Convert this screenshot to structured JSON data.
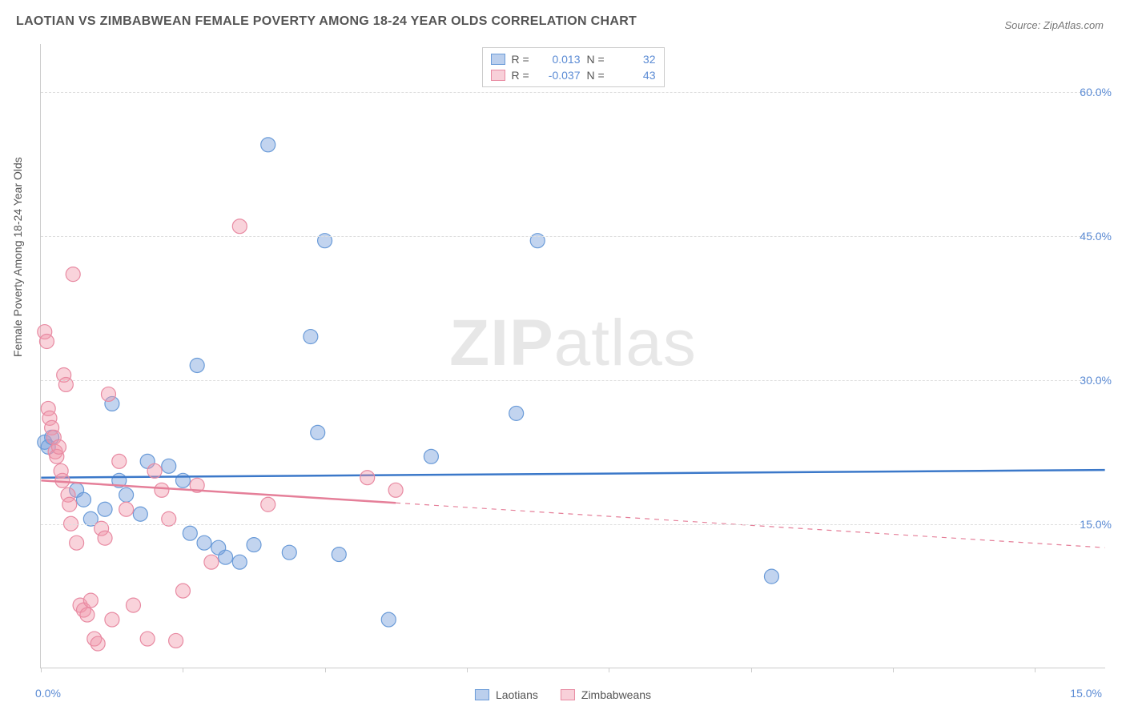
{
  "title": "LAOTIAN VS ZIMBABWEAN FEMALE POVERTY AMONG 18-24 YEAR OLDS CORRELATION CHART",
  "source": "Source: ZipAtlas.com",
  "y_axis_label": "Female Poverty Among 18-24 Year Olds",
  "watermark": "ZIPatlas",
  "chart": {
    "type": "scatter",
    "background_color": "#ffffff",
    "grid_color": "#dddddd",
    "axis_color": "#cccccc",
    "title_fontsize": 16,
    "label_fontsize": 14,
    "tick_label_color": "#5b8bd4",
    "text_color": "#555555",
    "xlim": [
      0,
      15
    ],
    "ylim": [
      0,
      65
    ],
    "y_ticks": [
      15,
      30,
      45,
      60
    ],
    "y_tick_labels": [
      "15.0%",
      "30.0%",
      "45.0%",
      "60.0%"
    ],
    "x_tick_positions": [
      0,
      2,
      4,
      6,
      8,
      10,
      12,
      14
    ],
    "x_tick_labels_shown": {
      "left": "0.0%",
      "right": "15.0%"
    },
    "marker_radius": 9,
    "marker_stroke_width": 1.2,
    "series": [
      {
        "name": "Laotians",
        "fill": "rgba(120,160,220,0.45)",
        "stroke": "#6a9bd8",
        "r_value": "0.013",
        "n_value": "32",
        "trend": {
          "color": "#3b78c9",
          "width": 2.5,
          "y_at_x0": 19.8,
          "y_at_x15": 20.6,
          "solid_to_x": 15
        },
        "points": [
          [
            0.05,
            23.5
          ],
          [
            0.1,
            23.0
          ],
          [
            0.15,
            24.0
          ],
          [
            0.5,
            18.5
          ],
          [
            0.6,
            17.5
          ],
          [
            0.7,
            15.5
          ],
          [
            0.9,
            16.5
          ],
          [
            1.0,
            27.5
          ],
          [
            1.1,
            19.5
          ],
          [
            1.2,
            18.0
          ],
          [
            1.4,
            16.0
          ],
          [
            1.5,
            21.5
          ],
          [
            1.8,
            21.0
          ],
          [
            2.0,
            19.5
          ],
          [
            2.1,
            14.0
          ],
          [
            2.2,
            31.5
          ],
          [
            2.3,
            13.0
          ],
          [
            2.5,
            12.5
          ],
          [
            2.6,
            11.5
          ],
          [
            2.8,
            11.0
          ],
          [
            3.0,
            12.8
          ],
          [
            3.2,
            54.5
          ],
          [
            3.5,
            12.0
          ],
          [
            3.8,
            34.5
          ],
          [
            3.9,
            24.5
          ],
          [
            4.0,
            44.5
          ],
          [
            4.2,
            11.8
          ],
          [
            4.9,
            5.0
          ],
          [
            5.5,
            22.0
          ],
          [
            6.7,
            26.5
          ],
          [
            7.0,
            44.5
          ],
          [
            10.3,
            9.5
          ]
        ]
      },
      {
        "name": "Zimbabweans",
        "fill": "rgba(240,150,170,0.42)",
        "stroke": "#e88aa2",
        "r_value": "-0.037",
        "n_value": "43",
        "trend": {
          "color": "#e57f99",
          "width": 2.5,
          "y_at_x0": 19.5,
          "y_at_x15": 12.5,
          "solid_to_x": 5.0
        },
        "points": [
          [
            0.05,
            35.0
          ],
          [
            0.08,
            34.0
          ],
          [
            0.1,
            27.0
          ],
          [
            0.12,
            26.0
          ],
          [
            0.15,
            25.0
          ],
          [
            0.18,
            24.0
          ],
          [
            0.2,
            22.5
          ],
          [
            0.22,
            22.0
          ],
          [
            0.25,
            23.0
          ],
          [
            0.28,
            20.5
          ],
          [
            0.3,
            19.5
          ],
          [
            0.32,
            30.5
          ],
          [
            0.35,
            29.5
          ],
          [
            0.38,
            18.0
          ],
          [
            0.4,
            17.0
          ],
          [
            0.42,
            15.0
          ],
          [
            0.45,
            41.0
          ],
          [
            0.5,
            13.0
          ],
          [
            0.55,
            6.5
          ],
          [
            0.6,
            6.0
          ],
          [
            0.65,
            5.5
          ],
          [
            0.7,
            7.0
          ],
          [
            0.75,
            3.0
          ],
          [
            0.8,
            2.5
          ],
          [
            0.85,
            14.5
          ],
          [
            0.9,
            13.5
          ],
          [
            0.95,
            28.5
          ],
          [
            1.0,
            5.0
          ],
          [
            1.1,
            21.5
          ],
          [
            1.2,
            16.5
          ],
          [
            1.3,
            6.5
          ],
          [
            1.5,
            3.0
          ],
          [
            1.6,
            20.5
          ],
          [
            1.7,
            18.5
          ],
          [
            1.8,
            15.5
          ],
          [
            1.9,
            2.8
          ],
          [
            2.0,
            8.0
          ],
          [
            2.2,
            19.0
          ],
          [
            2.4,
            11.0
          ],
          [
            2.8,
            46.0
          ],
          [
            3.2,
            17.0
          ],
          [
            4.6,
            19.8
          ],
          [
            5.0,
            18.5
          ]
        ]
      }
    ],
    "legend_top": {
      "r_label": "R =",
      "n_label": "N ="
    },
    "legend_bottom": [
      {
        "swatch": "blue",
        "label": "Laotians"
      },
      {
        "swatch": "pink",
        "label": "Zimbabweans"
      }
    ]
  }
}
